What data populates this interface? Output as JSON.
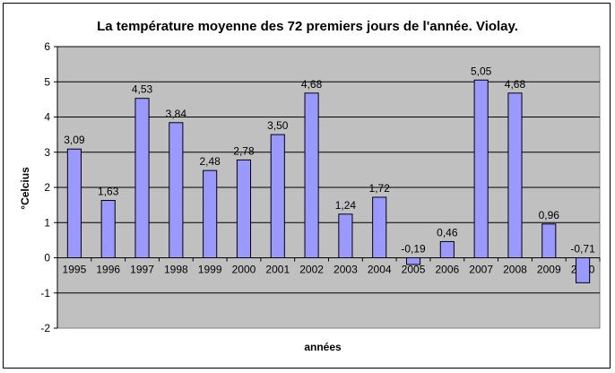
{
  "colors": {
    "plot_background": "#c0c0c0",
    "bar_fill": "#9999ff",
    "bar_stroke": "#000000",
    "gridline": "#000000"
  },
  "chart_data": {
    "type": "bar",
    "title": "La température moyenne des 72 premiers jours de l'année. Violay.",
    "xlabel": "années",
    "ylabel": "°Celcius",
    "ylim": [
      -2,
      6
    ],
    "yticks": [
      -2,
      -1,
      0,
      1,
      2,
      3,
      4,
      5,
      6
    ],
    "grid": true,
    "legend": "none",
    "categories": [
      "1995",
      "1996",
      "1997",
      "1998",
      "1999",
      "2000",
      "2001",
      "2002",
      "2003",
      "2004",
      "2005",
      "2006",
      "2007",
      "2008",
      "2009",
      "2010"
    ],
    "values": [
      3.09,
      1.63,
      4.53,
      3.84,
      2.48,
      2.78,
      3.5,
      4.68,
      1.24,
      1.72,
      -0.19,
      0.46,
      5.05,
      4.68,
      0.96,
      -0.71
    ],
    "data_labels": [
      "3,09",
      "1,63",
      "4,53",
      "3,84",
      "2,48",
      "2,78",
      "3,50",
      "4,68",
      "1,24",
      "1,72",
      "-0,19",
      "0,46",
      "5,05",
      "4,68",
      "0,96",
      "-0,71"
    ]
  }
}
